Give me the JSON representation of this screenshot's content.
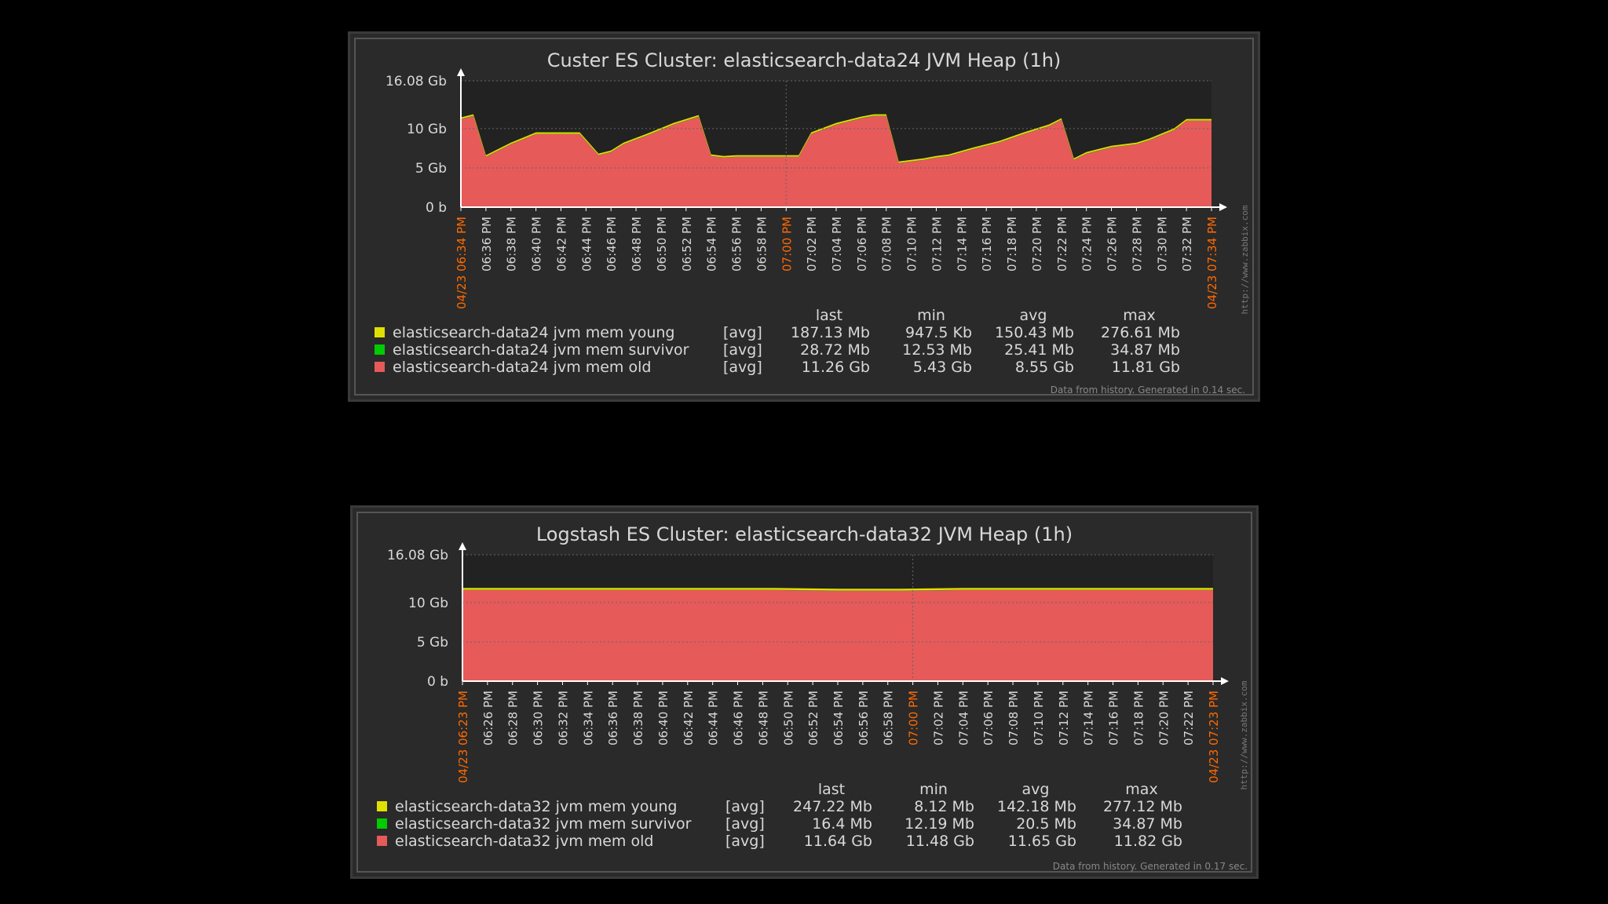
{
  "colors": {
    "background": "#000000",
    "panel": "#2a2a2a",
    "plot_area": "#222222",
    "axis": "#ffffff",
    "text": "#d8d8d8",
    "highlight": "#ff6a00",
    "young": "#e0e000",
    "survivor": "#00cc00",
    "old": "#e65a5a"
  },
  "chart_data": [
    {
      "type": "area",
      "title": "Custer ES Cluster: elasticsearch-data24 JVM Heap (1h)",
      "y_unit": "Gb",
      "ylim": [
        0,
        16.08
      ],
      "y_ticks": [
        {
          "value": 0,
          "label": "0 b"
        },
        {
          "value": 5,
          "label": "5 Gb"
        },
        {
          "value": 10,
          "label": "10 Gb"
        },
        {
          "value": 16.08,
          "label": "16.08 Gb"
        }
      ],
      "x_tick_labels": [
        {
          "label": "04/23 06:34 PM",
          "highlight": true
        },
        {
          "label": "06:36 PM"
        },
        {
          "label": "06:38 PM"
        },
        {
          "label": "06:40 PM"
        },
        {
          "label": "06:42 PM"
        },
        {
          "label": "06:44 PM"
        },
        {
          "label": "06:46 PM"
        },
        {
          "label": "06:48 PM"
        },
        {
          "label": "06:50 PM"
        },
        {
          "label": "06:52 PM"
        },
        {
          "label": "06:54 PM"
        },
        {
          "label": "06:56 PM"
        },
        {
          "label": "06:58 PM"
        },
        {
          "label": "07:00 PM",
          "highlight": true
        },
        {
          "label": "07:02 PM"
        },
        {
          "label": "07:04 PM"
        },
        {
          "label": "07:06 PM"
        },
        {
          "label": "07:08 PM"
        },
        {
          "label": "07:10 PM"
        },
        {
          "label": "07:12 PM"
        },
        {
          "label": "07:14 PM"
        },
        {
          "label": "07:16 PM"
        },
        {
          "label": "07:18 PM"
        },
        {
          "label": "07:20 PM"
        },
        {
          "label": "07:22 PM"
        },
        {
          "label": "07:24 PM"
        },
        {
          "label": "07:26 PM"
        },
        {
          "label": "07:28 PM"
        },
        {
          "label": "07:30 PM"
        },
        {
          "label": "07:32 PM"
        },
        {
          "label": "04/23 07:34 PM",
          "highlight": true
        }
      ],
      "x_range_minutes": [
        0,
        60
      ],
      "old_gb": [
        [
          0,
          11.2
        ],
        [
          1,
          11.6
        ],
        [
          2,
          6.4
        ],
        [
          4,
          8.0
        ],
        [
          6,
          9.3
        ],
        [
          8,
          9.3
        ],
        [
          9.5,
          9.3
        ],
        [
          11,
          6.6
        ],
        [
          12,
          7.0
        ],
        [
          13,
          8.0
        ],
        [
          15,
          9.2
        ],
        [
          17,
          10.5
        ],
        [
          19,
          11.5
        ],
        [
          20,
          6.5
        ],
        [
          21,
          6.3
        ],
        [
          22,
          6.4
        ],
        [
          24,
          6.4
        ],
        [
          25,
          6.4
        ],
        [
          27,
          6.4
        ],
        [
          28,
          9.3
        ],
        [
          30,
          10.5
        ],
        [
          32,
          11.3
        ],
        [
          33,
          11.6
        ],
        [
          34,
          11.6
        ],
        [
          35,
          5.6
        ],
        [
          37,
          6.0
        ],
        [
          38,
          6.3
        ],
        [
          39,
          6.5
        ],
        [
          41,
          7.4
        ],
        [
          43,
          8.2
        ],
        [
          45,
          9.3
        ],
        [
          47,
          10.3
        ],
        [
          48,
          11.1
        ],
        [
          49,
          6.0
        ],
        [
          50,
          6.8
        ],
        [
          52,
          7.6
        ],
        [
          54,
          8.0
        ],
        [
          55,
          8.5
        ],
        [
          57,
          9.8
        ],
        [
          58,
          11.0
        ],
        [
          60,
          11.0
        ]
      ],
      "survivor_band_gb": 0.03,
      "young_band_gb": 0.19,
      "legend": {
        "headers": [
          "last",
          "min",
          "avg",
          "max"
        ],
        "rows": [
          {
            "swatch": "young",
            "name": "elasticsearch-data24 jvm mem young",
            "func": "[avg]",
            "last": "187.13 Mb",
            "min": "947.5 Kb",
            "avg": "150.43 Mb",
            "max": "276.61 Mb"
          },
          {
            "swatch": "survivor",
            "name": "elasticsearch-data24 jvm mem survivor",
            "func": "[avg]",
            "last": "28.72 Mb",
            "min": "12.53 Mb",
            "avg": "25.41 Mb",
            "max": "34.87 Mb"
          },
          {
            "swatch": "old",
            "name": "elasticsearch-data24 jvm mem old",
            "func": "[avg]",
            "last": "11.26 Gb",
            "min": "5.43 Gb",
            "avg": "8.55 Gb",
            "max": "11.81 Gb"
          }
        ]
      },
      "watermark": "http://www.zabbix.com",
      "footer": "Data from history. Generated in 0.14 sec."
    },
    {
      "type": "area",
      "title": "Logstash ES Cluster: elasticsearch-data32 JVM Heap (1h)",
      "y_unit": "Gb",
      "ylim": [
        0,
        16.08
      ],
      "y_ticks": [
        {
          "value": 0,
          "label": "0 b"
        },
        {
          "value": 5,
          "label": "5 Gb"
        },
        {
          "value": 10,
          "label": "10 Gb"
        },
        {
          "value": 16.08,
          "label": "16.08 Gb"
        }
      ],
      "x_tick_labels": [
        {
          "label": "04/23 06:23 PM",
          "highlight": true
        },
        {
          "label": "06:26 PM"
        },
        {
          "label": "06:28 PM"
        },
        {
          "label": "06:30 PM"
        },
        {
          "label": "06:32 PM"
        },
        {
          "label": "06:34 PM"
        },
        {
          "label": "06:36 PM"
        },
        {
          "label": "06:38 PM"
        },
        {
          "label": "06:40 PM"
        },
        {
          "label": "06:42 PM"
        },
        {
          "label": "06:44 PM"
        },
        {
          "label": "06:46 PM"
        },
        {
          "label": "06:48 PM"
        },
        {
          "label": "06:50 PM"
        },
        {
          "label": "06:52 PM"
        },
        {
          "label": "06:54 PM"
        },
        {
          "label": "06:56 PM"
        },
        {
          "label": "06:58 PM"
        },
        {
          "label": "07:00 PM",
          "highlight": true
        },
        {
          "label": "07:02 PM"
        },
        {
          "label": "07:04 PM"
        },
        {
          "label": "07:06 PM"
        },
        {
          "label": "07:08 PM"
        },
        {
          "label": "07:10 PM"
        },
        {
          "label": "07:12 PM"
        },
        {
          "label": "07:14 PM"
        },
        {
          "label": "07:16 PM"
        },
        {
          "label": "07:18 PM"
        },
        {
          "label": "07:20 PM"
        },
        {
          "label": "07:22 PM"
        },
        {
          "label": "04/23 07:23 PM",
          "highlight": true
        }
      ],
      "x_range_minutes": [
        0,
        60
      ],
      "old_gb": [
        [
          0,
          11.6
        ],
        [
          5,
          11.6
        ],
        [
          10,
          11.6
        ],
        [
          15,
          11.6
        ],
        [
          20,
          11.6
        ],
        [
          25,
          11.6
        ],
        [
          30,
          11.5
        ],
        [
          35,
          11.5
        ],
        [
          40,
          11.6
        ],
        [
          45,
          11.6
        ],
        [
          50,
          11.6
        ],
        [
          55,
          11.6
        ],
        [
          60,
          11.6
        ]
      ],
      "survivor_band_gb": 0.02,
      "young_band_gb": 0.24,
      "legend": {
        "headers": [
          "last",
          "min",
          "avg",
          "max"
        ],
        "rows": [
          {
            "swatch": "young",
            "name": "elasticsearch-data32 jvm mem young",
            "func": "[avg]",
            "last": "247.22 Mb",
            "min": "8.12 Mb",
            "avg": "142.18 Mb",
            "max": "277.12 Mb"
          },
          {
            "swatch": "survivor",
            "name": "elasticsearch-data32 jvm mem survivor",
            "func": "[avg]",
            "last": "16.4 Mb",
            "min": "12.19 Mb",
            "avg": "20.5 Mb",
            "max": "34.87 Mb"
          },
          {
            "swatch": "old",
            "name": "elasticsearch-data32 jvm mem old",
            "func": "[avg]",
            "last": "11.64 Gb",
            "min": "11.48 Gb",
            "avg": "11.65 Gb",
            "max": "11.82 Gb"
          }
        ]
      },
      "watermark": "http://www.zabbix.com",
      "footer": "Data from history. Generated in 0.17 sec."
    }
  ]
}
